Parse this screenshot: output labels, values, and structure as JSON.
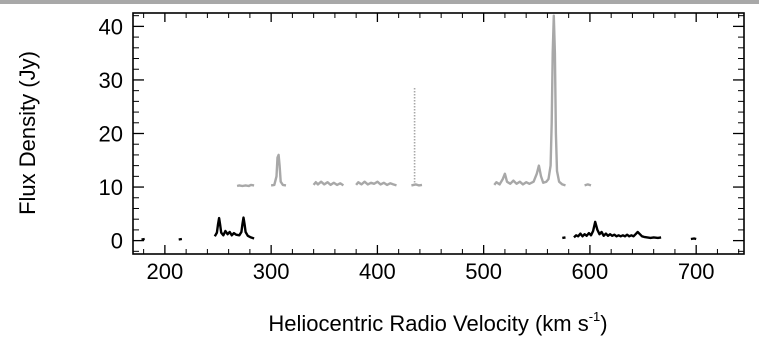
{
  "chart_data": {
    "type": "line",
    "title": "",
    "xlabel": "Heliocentric Radio Velocity (km s",
    "xlabel_sup": "-1",
    "xlabel_close": ")",
    "ylabel": "Flux Density (Jy)",
    "xlim": [
      170,
      745
    ],
    "ylim": [
      -2.5,
      42.5
    ],
    "x_ticks": [
      200,
      300,
      400,
      500,
      600,
      700
    ],
    "y_ticks": [
      0,
      10,
      20,
      30,
      40
    ],
    "grid": false,
    "legend": "none",
    "series": [
      {
        "color": "#a8a8a8",
        "style": "line",
        "points": [
          [
            268,
            10.2
          ],
          [
            270,
            10.3
          ],
          [
            273,
            10.2
          ],
          [
            276,
            10.3
          ],
          [
            279,
            10.2
          ],
          [
            281,
            10.4
          ],
          [
            284,
            10.3
          ],
          [
            300,
            10.3
          ],
          [
            303,
            10.4
          ],
          [
            305,
            12.0
          ],
          [
            306,
            15.5
          ],
          [
            307,
            16.0
          ],
          [
            308,
            14.0
          ],
          [
            309,
            11.0
          ],
          [
            311,
            10.4
          ],
          [
            314,
            10.3
          ],
          [
            340,
            10.4
          ],
          [
            342,
            10.9
          ],
          [
            344,
            10.5
          ],
          [
            347,
            11.0
          ],
          [
            350,
            10.5
          ],
          [
            353,
            10.9
          ],
          [
            356,
            10.4
          ],
          [
            359,
            10.8
          ],
          [
            362,
            10.4
          ],
          [
            365,
            10.7
          ],
          [
            368,
            10.3
          ],
          [
            380,
            10.4
          ],
          [
            382,
            10.9
          ],
          [
            385,
            10.5
          ],
          [
            388,
            11.0
          ],
          [
            391,
            10.5
          ],
          [
            394,
            10.8
          ],
          [
            397,
            10.6
          ],
          [
            400,
            11.0
          ],
          [
            403,
            10.5
          ],
          [
            406,
            10.8
          ],
          [
            409,
            10.4
          ],
          [
            412,
            10.7
          ],
          [
            415,
            10.5
          ],
          [
            418,
            10.3
          ],
          [
            432,
            10.3
          ],
          [
            436,
            10.5
          ],
          [
            439,
            10.3
          ],
          [
            442,
            10.4
          ],
          [
            510,
            10.4
          ],
          [
            512,
            10.9
          ],
          [
            515,
            10.5
          ],
          [
            518,
            11.5
          ],
          [
            520,
            12.5
          ],
          [
            522,
            11.0
          ],
          [
            525,
            10.6
          ],
          [
            528,
            11.2
          ],
          [
            531,
            10.6
          ],
          [
            534,
            11.0
          ],
          [
            537,
            10.5
          ],
          [
            540,
            10.9
          ],
          [
            543,
            10.6
          ],
          [
            547,
            11.0
          ],
          [
            550,
            12.5
          ],
          [
            552,
            14.0
          ],
          [
            554,
            12.0
          ],
          [
            556,
            10.8
          ],
          [
            559,
            11.0
          ],
          [
            561,
            11.5
          ],
          [
            563,
            14.0
          ],
          [
            564,
            22.0
          ],
          [
            565,
            35.0
          ],
          [
            566,
            42.0
          ],
          [
            567,
            35.0
          ],
          [
            568,
            20.0
          ],
          [
            569,
            13.0
          ],
          [
            571,
            11.0
          ],
          [
            574,
            10.5
          ],
          [
            577,
            10.3
          ],
          [
            595,
            10.3
          ],
          [
            598,
            10.5
          ],
          [
            601,
            10.3
          ]
        ]
      },
      {
        "color": "#a8a8a8",
        "style": "dotted-spike",
        "points": [
          [
            435,
            10.3
          ],
          [
            435,
            28.5
          ]
        ]
      },
      {
        "color": "#000000",
        "style": "line",
        "points": [
          [
            178,
            0.2
          ],
          [
            181,
            0.3
          ],
          [
            213,
            0.2
          ],
          [
            216,
            0.3
          ],
          [
            247,
            0.8
          ],
          [
            249,
            1.5
          ],
          [
            250,
            3.0
          ],
          [
            251,
            4.2
          ],
          [
            252,
            3.0
          ],
          [
            253,
            1.5
          ],
          [
            255,
            1.0
          ],
          [
            257,
            1.8
          ],
          [
            259,
            1.2
          ],
          [
            261,
            1.6
          ],
          [
            263,
            1.0
          ],
          [
            265,
            1.4
          ],
          [
            267,
            1.1
          ],
          [
            270,
            1.0
          ],
          [
            272,
            1.6
          ],
          [
            273,
            3.0
          ],
          [
            274,
            4.3
          ],
          [
            275,
            3.0
          ],
          [
            276,
            1.6
          ],
          [
            278,
            0.9
          ],
          [
            281,
            0.6
          ],
          [
            284,
            0.4
          ],
          [
            574,
            0.5
          ],
          [
            577,
            0.6
          ],
          [
            585,
            0.6
          ],
          [
            587,
            1.0
          ],
          [
            589,
            0.8
          ],
          [
            591,
            1.3
          ],
          [
            593,
            0.8
          ],
          [
            595,
            1.2
          ],
          [
            597,
            0.9
          ],
          [
            599,
            1.4
          ],
          [
            601,
            1.0
          ],
          [
            603,
            1.8
          ],
          [
            605,
            3.5
          ],
          [
            607,
            2.0
          ],
          [
            609,
            1.2
          ],
          [
            611,
            1.6
          ],
          [
            613,
            0.9
          ],
          [
            615,
            1.3
          ],
          [
            617,
            0.9
          ],
          [
            619,
            1.2
          ],
          [
            621,
            0.9
          ],
          [
            623,
            1.1
          ],
          [
            625,
            0.8
          ],
          [
            627,
            1.0
          ],
          [
            629,
            0.8
          ],
          [
            631,
            1.0
          ],
          [
            633,
            0.8
          ],
          [
            635,
            1.1
          ],
          [
            637,
            0.8
          ],
          [
            639,
            1.0
          ],
          [
            641,
            0.8
          ],
          [
            643,
            1.2
          ],
          [
            645,
            1.6
          ],
          [
            647,
            1.2
          ],
          [
            649,
            0.8
          ],
          [
            651,
            0.7
          ],
          [
            657,
            0.5
          ],
          [
            660,
            0.6
          ],
          [
            664,
            0.5
          ],
          [
            667,
            0.6
          ],
          [
            695,
            0.3
          ],
          [
            698,
            0.4
          ],
          [
            700,
            0.3
          ]
        ]
      }
    ]
  }
}
